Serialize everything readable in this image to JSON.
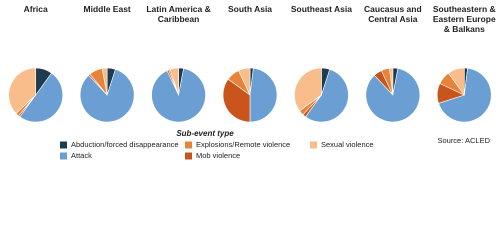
{
  "legend": {
    "title": "Sub-event type",
    "items": [
      {
        "name": "Abduction/forced disappearance",
        "color": "#1e3b4f"
      },
      {
        "name": "Attack",
        "color": "#6b9fd4"
      },
      {
        "name": "Mob violence",
        "color": "#c9541c"
      },
      {
        "name": "Explosions/Remote violence",
        "color": "#e8833a"
      },
      {
        "name": "Sexual violence",
        "color": "#f8bd8a"
      }
    ]
  },
  "source": "Source: ACLED",
  "chart_data": [
    {
      "type": "pie",
      "title": "Africa",
      "values": [
        10,
        50,
        1,
        2,
        37
      ]
    },
    {
      "type": "pie",
      "title": "Middle East",
      "values": [
        5,
        83,
        1,
        8,
        3
      ]
    },
    {
      "type": "pie",
      "title": "Latin America & Caribbean",
      "values": [
        3,
        90,
        1,
        1,
        5
      ]
    },
    {
      "type": "pie",
      "title": "South Asia",
      "values": [
        2,
        48,
        35,
        8,
        7
      ]
    },
    {
      "type": "pie",
      "title": "Southeast Asia",
      "values": [
        5,
        55,
        2,
        3,
        35
      ]
    },
    {
      "type": "pie",
      "title": "Caucasus and Central Asia",
      "values": [
        3,
        85,
        5,
        5,
        2
      ]
    },
    {
      "type": "pie",
      "title": "Southeastern & Eastern Europe & Balkans",
      "values": [
        2,
        68,
        12,
        8,
        10
      ]
    }
  ]
}
